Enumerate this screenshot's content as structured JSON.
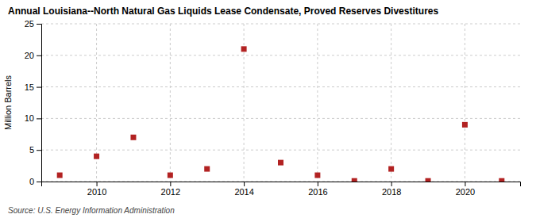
{
  "chart_data": {
    "type": "scatter",
    "title": "Annual Louisiana--North Natural Gas Liquids Lease Condensate, Proved Reserves Divestitures",
    "y_label": "Million Barrels",
    "annotations": [
      "Source: U.S. Energy Information Administration"
    ],
    "x": [
      2009,
      2010,
      2011,
      2012,
      2013,
      2014,
      2015,
      2016,
      2017,
      2018,
      2019,
      2020,
      2021
    ],
    "values": [
      1.0,
      4.0,
      7.0,
      1.0,
      2.0,
      21.0,
      3.0,
      1.0,
      0.1,
      2.0,
      0.1,
      9.0,
      0.1
    ],
    "xlim": [
      2008.5,
      2021.5
    ],
    "ylim": [
      0,
      25
    ],
    "xticks": [
      2010,
      2012,
      2014,
      2016,
      2018,
      2020
    ],
    "yticks": [
      0,
      5,
      10,
      15,
      20,
      25
    ],
    "color": "#b22222",
    "marker": "square",
    "grid": true
  }
}
